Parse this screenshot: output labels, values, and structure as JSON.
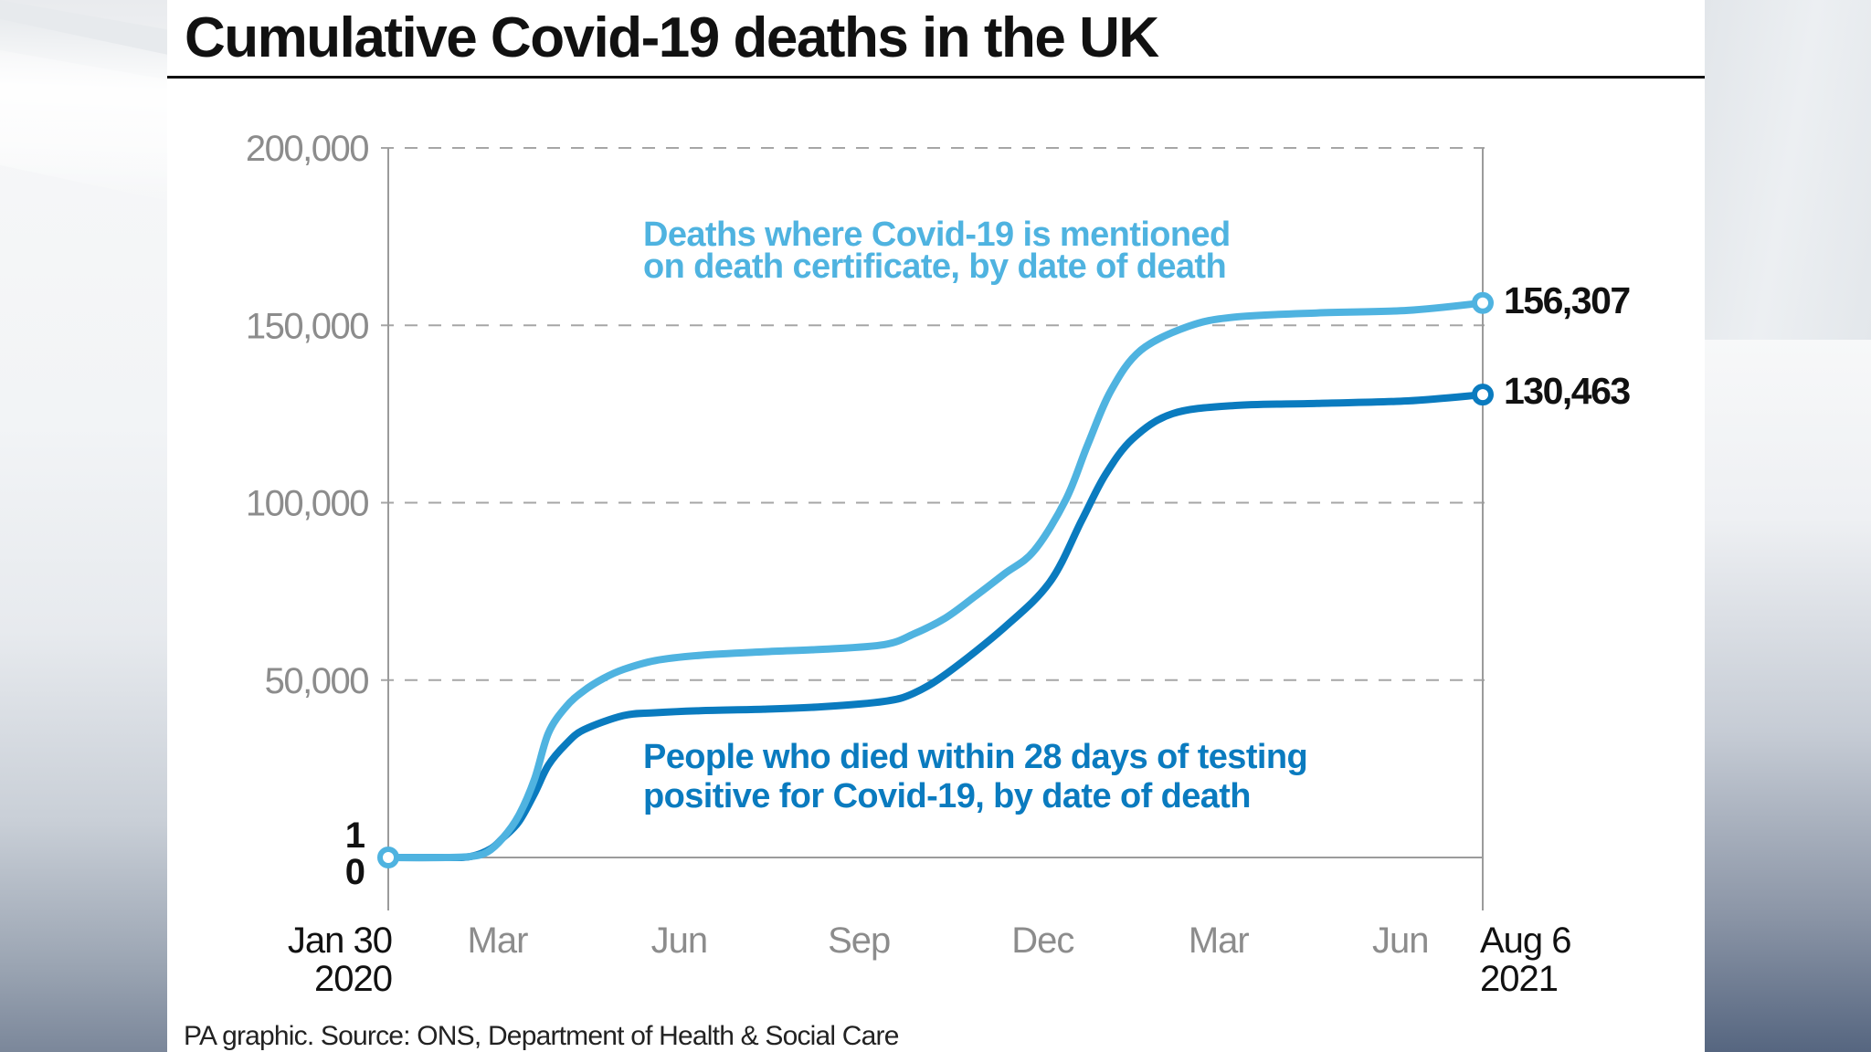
{
  "title": "Cumulative Covid-19 deaths in the UK",
  "footer": "PA graphic. Source: ONS, Department of Health & Social Care",
  "colors": {
    "certificate_series": "#4fb3e0",
    "tested_series": "#0a7bbf",
    "gridline": "#a6a6a6",
    "axis": "#9b9b9b",
    "tick_label": "#8c8c8c",
    "text": "#111111"
  },
  "chart_data": {
    "type": "line",
    "title": "Cumulative Covid-19 deaths in the UK",
    "xlabel": "",
    "ylabel": "",
    "x_unit": "days since Jan 30 2020",
    "xlim": [
      0,
      554
    ],
    "ylim": [
      0,
      200000
    ],
    "grid": true,
    "yticks": [
      {
        "value": 0,
        "label": "0"
      },
      {
        "value": 1,
        "label": "1"
      },
      {
        "value": 50000,
        "label": "50,000"
      },
      {
        "value": 100000,
        "label": "100,000"
      },
      {
        "value": 150000,
        "label": "150,000"
      },
      {
        "value": 200000,
        "label": "200,000"
      }
    ],
    "xticks": [
      {
        "day": 0,
        "label": "Jan 30",
        "sublabel": "2020",
        "emphasis": true
      },
      {
        "day": 46,
        "label": "Mar"
      },
      {
        "day": 138,
        "label": "Jun"
      },
      {
        "day": 229,
        "label": "Sep"
      },
      {
        "day": 322,
        "label": "Dec"
      },
      {
        "day": 411,
        "label": "Mar"
      },
      {
        "day": 503,
        "label": "Jun"
      },
      {
        "day": 554,
        "label": "Aug 6",
        "sublabel": "2021",
        "emphasis": true
      }
    ],
    "series": [
      {
        "name": "Deaths where Covid-19 is mentioned on death certificate, by date of death",
        "label_lines": [
          "Deaths where Covid-19 is mentioned",
          "on death certificate, by date of death"
        ],
        "color": "#4fb3e0",
        "end_label": "156,307",
        "x": [
          0,
          30,
          42,
          50,
          58,
          66,
          74,
          81,
          90,
          99,
          109,
          119,
          135,
          158,
          190,
          220,
          251,
          266,
          282,
          297,
          312,
          327,
          343,
          354,
          366,
          381,
          405,
          428,
          470,
          516,
          554
        ],
        "values": [
          0,
          0,
          300,
          1500,
          5500,
          11800,
          22000,
          35000,
          42500,
          47000,
          50500,
          53000,
          55500,
          57000,
          58000,
          58700,
          60000,
          63000,
          67500,
          73600,
          80000,
          86500,
          100900,
          116300,
          131800,
          143000,
          149700,
          152300,
          153500,
          154200,
          156307
        ]
      },
      {
        "name": "People who died within 28 days of testing positive for Covid-19, by date of death",
        "label_lines": [
          "People who died within 28 days of testing",
          "positive for Covid-19, by date of death"
        ],
        "color": "#0a7bbf",
        "end_label": "130,463",
        "x": [
          0,
          30,
          42,
          52,
          58,
          66,
          74,
          81,
          90,
          99,
          119,
          135,
          158,
          190,
          220,
          251,
          266,
          283,
          312,
          335,
          351,
          363,
          377,
          397,
          428,
          470,
          516,
          554
        ],
        "values": [
          0,
          0,
          300,
          2500,
          5500,
          10000,
          18000,
          26000,
          32000,
          36000,
          40000,
          40800,
          41400,
          41800,
          42500,
          44000,
          46300,
          52000,
          64900,
          77700,
          95000,
          107900,
          118100,
          125100,
          127400,
          128000,
          128700,
          130463
        ]
      }
    ],
    "annotations": [
      {
        "text": "1",
        "near": "y-axis zero"
      },
      {
        "text": "0",
        "near": "y-axis zero"
      }
    ]
  }
}
